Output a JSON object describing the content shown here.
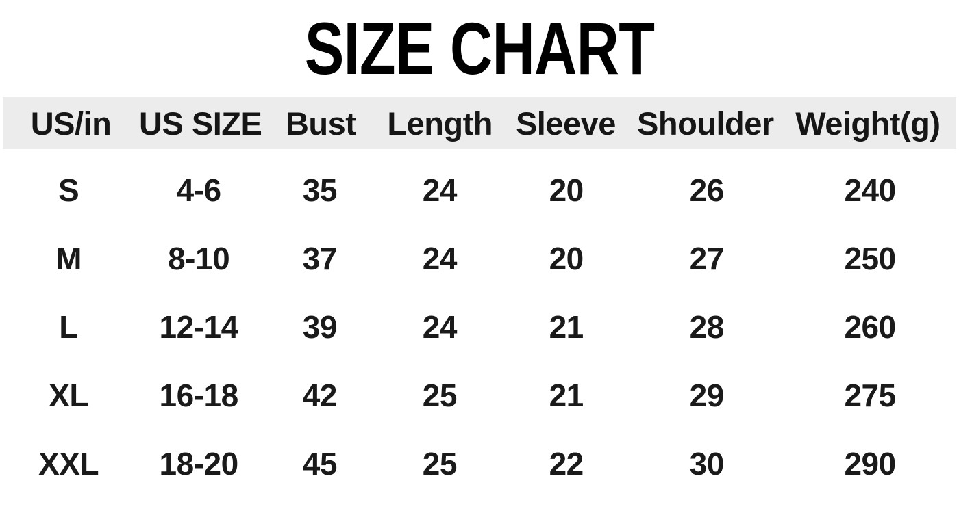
{
  "title": "SIZE CHART",
  "table": {
    "columns": [
      "US/in",
      "US SIZE",
      "Bust",
      "Length",
      "Sleeve",
      "Shoulder",
      "Weight(g)"
    ],
    "rows": [
      [
        "S",
        "4-6",
        "35",
        "24",
        "20",
        "26",
        "240"
      ],
      [
        "M",
        "8-10",
        "37",
        "24",
        "20",
        "27",
        "250"
      ],
      [
        "L",
        "12-14",
        "39",
        "24",
        "21",
        "28",
        "260"
      ],
      [
        "XL",
        "16-18",
        "42",
        "25",
        "21",
        "29",
        "275"
      ],
      [
        "XXL",
        "18-20",
        "45",
        "25",
        "22",
        "30",
        "290"
      ]
    ]
  },
  "colors": {
    "header_band": "#ececec",
    "title_text": "#000000",
    "body_text": "#1a1a1a",
    "background": "#ffffff"
  }
}
